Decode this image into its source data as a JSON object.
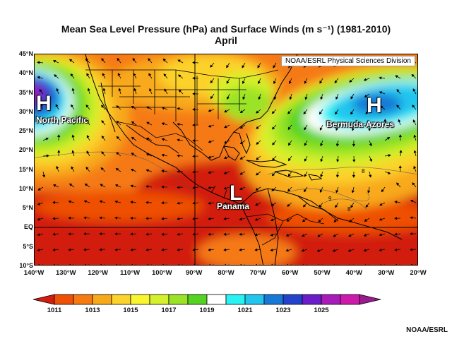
{
  "title": {
    "line1": "Mean Sea Level Pressure (hPa) and Surface Winds (m s⁻¹) (1981-2010)",
    "line2": "April"
  },
  "map": {
    "credit": "NOAA/ESRL Physical Sciences Division",
    "lon_labels": [
      "140°W",
      "130°W",
      "120°W",
      "110°W",
      "100°W",
      "90°W",
      "80°W",
      "70°W",
      "60°W",
      "50°W",
      "40°W",
      "30°W",
      "20°W"
    ],
    "lat_labels": [
      "45°N",
      "40°N",
      "35°N",
      "30°N",
      "25°N",
      "20°N",
      "15°N",
      "10°N",
      "5°N",
      "EQ",
      "5°S",
      "10°S"
    ],
    "lon_values": [
      -140,
      -130,
      -120,
      -110,
      -100,
      -90,
      -80,
      -70,
      -60,
      -50,
      -40,
      -30,
      -20
    ],
    "lat_values": [
      45,
      40,
      35,
      30,
      25,
      20,
      15,
      10,
      5,
      0,
      -5,
      -10
    ],
    "contour_labels": [
      "8",
      "8",
      "9"
    ],
    "systems": [
      {
        "letter": "H",
        "name": "North Pacific",
        "lon": -135,
        "lat": 32
      },
      {
        "letter": "H",
        "name": "Bermuda-Azores",
        "lon": -35,
        "lat": 31
      },
      {
        "letter": "L",
        "name": "Panama",
        "lon": -80,
        "lat": 9
      }
    ]
  },
  "colorbar": {
    "colors": [
      "#d21c0e",
      "#ee5005",
      "#f57a12",
      "#f8a91a",
      "#fcd22c",
      "#f9f62f",
      "#d5f02c",
      "#9be327",
      "#55d322",
      "#ffffff",
      "#28f2f2",
      "#22c5ee",
      "#1878d6",
      "#2542cc",
      "#6a1dc8",
      "#a81bb8",
      "#ce1aab",
      "#9a1a90"
    ],
    "labels": [
      "1011",
      "1013",
      "1015",
      "1017",
      "1019",
      "1021",
      "1023",
      "1025"
    ]
  },
  "footer": "NOAA/ESRL"
}
